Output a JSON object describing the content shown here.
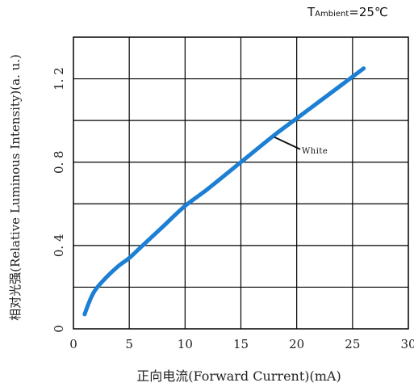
{
  "annotation": {
    "prefix": "T",
    "subscript": "Ambient",
    "suffix": "=25℃"
  },
  "chart_data": {
    "type": "line",
    "xlabel": "正向电流(Forward  Current)(mA)",
    "ylabel": "相对光强(Relative Luminous  Intensity)(a. u.)",
    "xlim": [
      0,
      30
    ],
    "ylim": [
      0,
      1.4
    ],
    "xticks": [
      0,
      5,
      10,
      15,
      20,
      25,
      30
    ],
    "yticks": [
      0,
      0.4,
      0.8,
      1.2
    ],
    "ytick_labels": [
      "0",
      "0. 4",
      "0. 8",
      "1. 2"
    ],
    "grid": true,
    "series": [
      {
        "name": "White",
        "color": "#1c7fd4",
        "x": [
          1,
          1.5,
          2,
          3,
          4,
          5,
          6,
          8,
          10,
          12,
          15,
          18,
          20,
          22,
          24,
          26
        ],
        "y": [
          0.07,
          0.14,
          0.19,
          0.25,
          0.3,
          0.34,
          0.39,
          0.49,
          0.59,
          0.67,
          0.8,
          0.93,
          1.01,
          1.09,
          1.17,
          1.25
        ]
      }
    ],
    "series_label_at": [
      18,
      0.92
    ]
  }
}
